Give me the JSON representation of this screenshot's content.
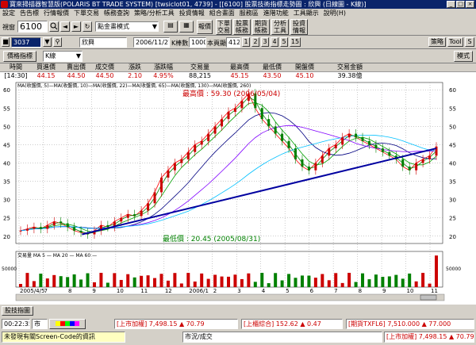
{
  "window": {
    "title": "寶來掃描器智慧版(POLARIS BT TRADE SYSTEM)  [twsiclot01, 4739] - [[6100] 股票技術指標走勢圖 : 欣興 (日線圖 - K線)]",
    "controls": [
      "_",
      "□",
      "×"
    ]
  },
  "menu": [
    "設定",
    "告告標",
    "行情報價",
    "下單交易",
    "帳務查詢",
    "策略/分析工具",
    "投資情報",
    "組合畫面",
    "服務區",
    "進階功能",
    "工具顯示",
    "說明(H)"
  ],
  "toolbar1": {
    "view_label": "視窗",
    "stock_code": "6100",
    "mode_select": "點金畫模式",
    "report_button": "報價",
    "order_button": "下單\n交易",
    "account_button": "股票\n帳務",
    "futures_button": "期貨\n帳務",
    "analysis_button": "分析\n工具",
    "news_button": "投資\n情報"
  },
  "toolbar2": {
    "code_field": "3037",
    "name_field": "欣興",
    "date_field": "2006/11/27",
    "kline_label": "K棒數目",
    "kline_count": "1000",
    "display_label": "本頁顯示",
    "display_count": "412",
    "page_buttons": [
      "1",
      "2",
      "3",
      "4",
      "5",
      "15"
    ],
    "strategy_button": "策略",
    "tool_button": "Tool",
    "snap_button": "S"
  },
  "toolbar3": {
    "indicator_button": "價格指標",
    "kline_type": "K線",
    "mode_button": "模式"
  },
  "quote": {
    "headers": [
      "時間",
      "買進價",
      "賣出價",
      "成交價",
      "漲跌",
      "漲跌幅",
      "交易量",
      "最高價",
      "最低價",
      "開盤價",
      "交易金額"
    ],
    "values": [
      "[14:30]",
      "44.15",
      "44.50",
      "44.50",
      "2.10",
      "4.95%",
      "88,215",
      "45.15",
      "43.50",
      "45.10",
      "39.38億"
    ]
  },
  "chart_data": {
    "type": "line",
    "title": "",
    "ma_legend": "MA(收盤價, 5)—MA(收盤價, 10)—MA(收盤價, 22)—MA(收盤價, 65)—MA(收盤價, 130)—MA(收盤價, 260)",
    "x_ticks": [
      "2005/4/5",
      "7",
      "8",
      "9",
      "10",
      "11",
      "12",
      "2006/1",
      "2",
      "3",
      "4",
      "5",
      "6",
      "7",
      "8",
      "9",
      "10",
      "11"
    ],
    "y_ticks": [
      20,
      25,
      30,
      35,
      40,
      45,
      50,
      55,
      60
    ],
    "ylim": [
      18,
      62
    ],
    "high_annotation": "最高價 : 59.30 (2006/05/04)",
    "low_annotation": "最低價 : 20.45 (2005/08/31)",
    "close": [
      21.5,
      22,
      22.5,
      22,
      23,
      24,
      23.5,
      22.5,
      21.5,
      21,
      20.5,
      21.5,
      23,
      22.5,
      24,
      25,
      26,
      25.5,
      27,
      29,
      32,
      36,
      38,
      40,
      41,
      43,
      45,
      46,
      48,
      50,
      52,
      54,
      55,
      57,
      59,
      55,
      52,
      50,
      48,
      46,
      44,
      41,
      39,
      38,
      40,
      42,
      44,
      45,
      47,
      48,
      47,
      46,
      45,
      44,
      43,
      42,
      41,
      39,
      38,
      40,
      41,
      42,
      44.5
    ],
    "series": [
      {
        "name": "MA5",
        "color": "#ff0000"
      },
      {
        "name": "MA10",
        "color": "#008000"
      },
      {
        "name": "MA22",
        "color": "#00a000"
      },
      {
        "name": "MA65",
        "color": "#000080"
      },
      {
        "name": "MA130",
        "color": "#8000ff"
      },
      {
        "name": "MA260",
        "color": "#00c0ff"
      }
    ],
    "trendline": {
      "x": [
        0.155,
        0.985
      ],
      "y": [
        20.5,
        44
      ]
    },
    "volume": {
      "legend": "交易量  MA  5 — MA  20 — MA  60 —",
      "y_ticks": [
        "50000",
        "0"
      ]
    }
  },
  "status": {
    "tab_label": "股技指圖",
    "clock": "00:22:35",
    "market_select": "市",
    "ticker1_label": "[上市加權]",
    "ticker1_value": "7,498.15",
    "ticker1_change": "▲ 70.79",
    "ticker2_label": "[上櫃綜合]",
    "ticker2_value": "152.62",
    "ticker2_change": "▲ 0.47",
    "ticker3_label": "[期貨TXFL6]",
    "ticker3_value": "7,510.000",
    "ticker3_change": "▲ 77.000",
    "message": "未發現有關Screen-Code的資訊",
    "market_status": "市況/成交",
    "ticker4_label": "[上市加權]",
    "ticker4_value": "7,498.15",
    "ticker4_change": "▲ 70.79"
  }
}
